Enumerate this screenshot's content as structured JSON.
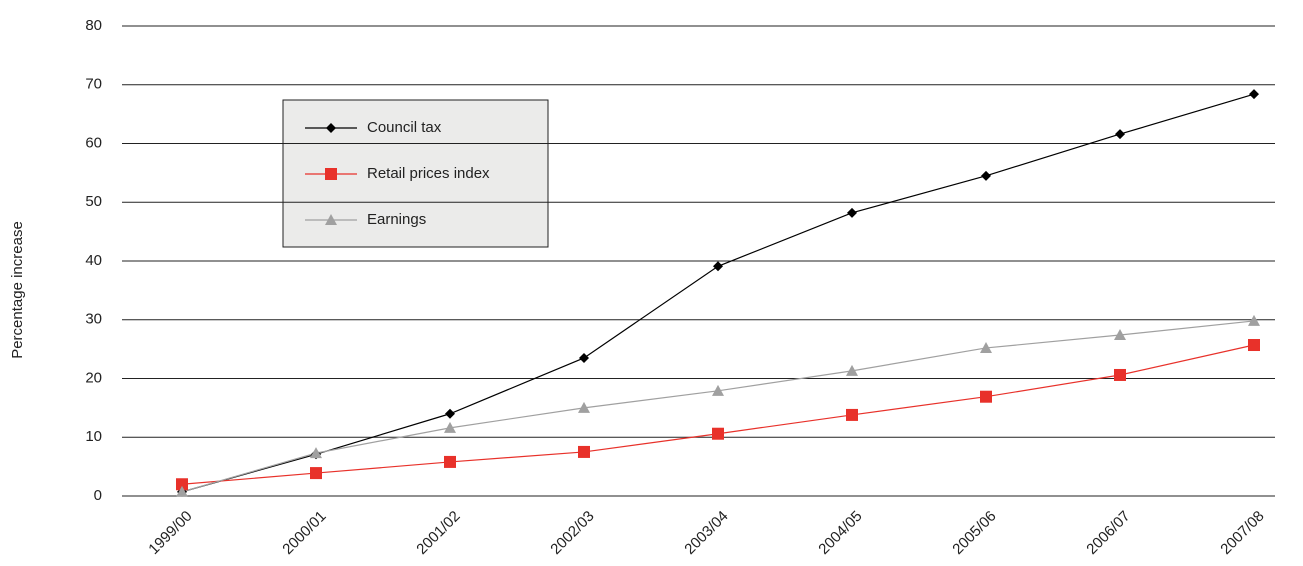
{
  "chart_data": {
    "type": "line",
    "ylabel": "Percentage increase",
    "categories": [
      "1999/00",
      "2000/01",
      "2001/02",
      "2002/03",
      "2003/04",
      "2004/05",
      "2005/06",
      "2006/07",
      "2007/08"
    ],
    "series": [
      {
        "name": "Council tax",
        "color": "#000000",
        "marker": "diamond",
        "values": [
          0.7,
          7.1,
          14.0,
          23.5,
          39.1,
          48.2,
          54.5,
          61.6,
          68.4
        ]
      },
      {
        "name": "Retail prices index",
        "color": "#e8312a",
        "marker": "square",
        "values": [
          2.0,
          3.9,
          5.8,
          7.5,
          10.6,
          13.8,
          16.9,
          20.6,
          25.7
        ]
      },
      {
        "name": "Earnings",
        "color": "#a0a0a0",
        "marker": "triangle",
        "values": [
          0.7,
          7.3,
          11.6,
          15.0,
          17.9,
          21.3,
          25.2,
          27.4,
          29.8
        ]
      }
    ],
    "ylim": [
      0,
      80
    ],
    "yticks": [
      0,
      10,
      20,
      30,
      40,
      50,
      60,
      70,
      80
    ],
    "grid": true
  }
}
